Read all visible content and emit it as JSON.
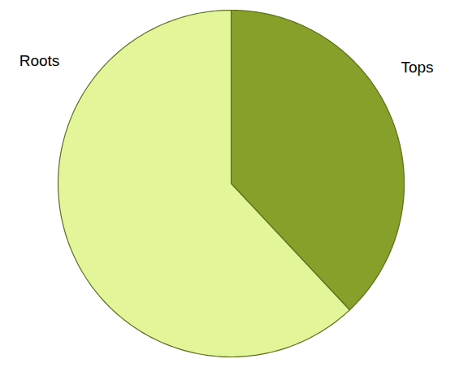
{
  "chart_data": {
    "type": "pie",
    "categories": [
      "Tops",
      "Roots"
    ],
    "values": [
      38,
      62
    ],
    "colors": [
      "#86a02a",
      "#e3f599"
    ]
  }
}
